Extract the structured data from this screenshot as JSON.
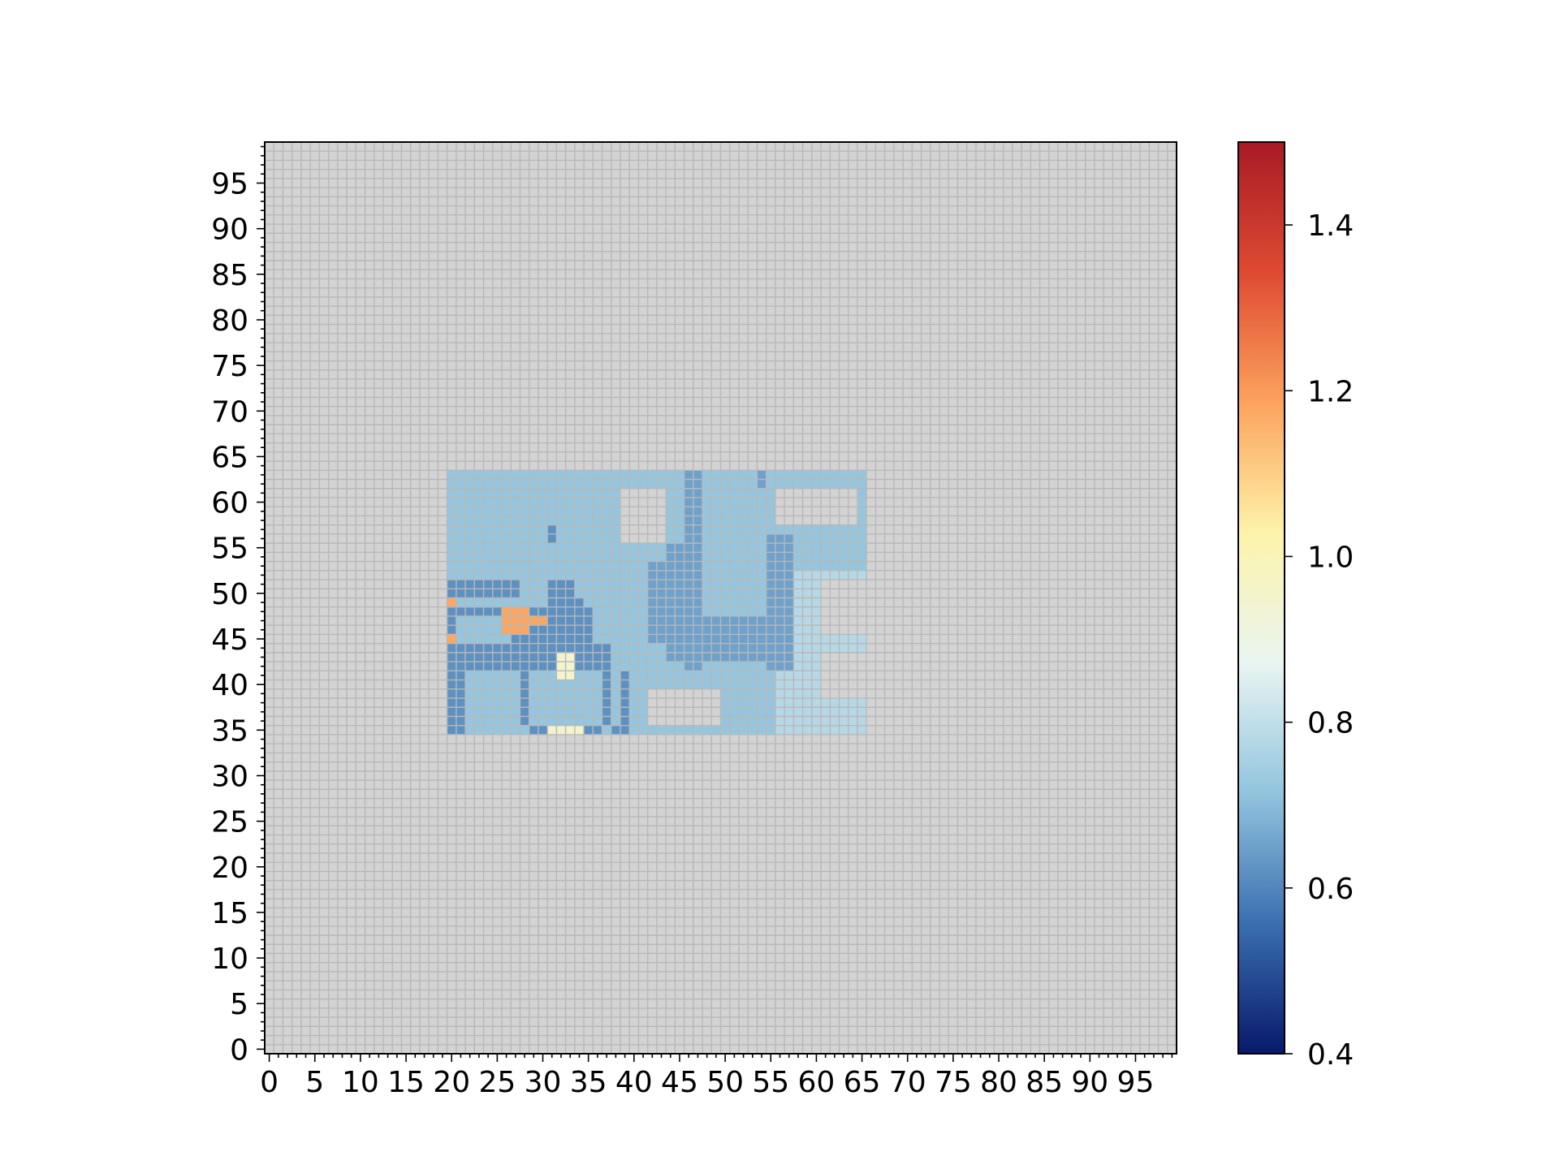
{
  "chart_data": {
    "type": "heatmap",
    "title": "",
    "xlabel": "",
    "ylabel": "",
    "xlim": [
      0,
      100
    ],
    "ylim": [
      0,
      100
    ],
    "x_ticks": [
      "0",
      "5",
      "10",
      "15",
      "20",
      "25",
      "30",
      "35",
      "40",
      "45",
      "50",
      "55",
      "60",
      "65",
      "70",
      "75",
      "80",
      "85",
      "90",
      "95"
    ],
    "y_ticks": [
      "0",
      "5",
      "10",
      "15",
      "20",
      "25",
      "30",
      "35",
      "40",
      "45",
      "50",
      "55",
      "60",
      "65",
      "70",
      "75",
      "80",
      "85",
      "90",
      "95"
    ],
    "x_tick_values": [
      0,
      5,
      10,
      15,
      20,
      25,
      30,
      35,
      40,
      45,
      50,
      55,
      60,
      65,
      70,
      75,
      80,
      85,
      90,
      95
    ],
    "y_tick_values": [
      0,
      5,
      10,
      15,
      20,
      25,
      30,
      35,
      40,
      45,
      50,
      55,
      60,
      65,
      70,
      75,
      80,
      85,
      90,
      95
    ],
    "grid": true,
    "background_value_color": "#d3d3d3",
    "grid_color": "#b8b8b8",
    "colormap": "RdYlBu_r",
    "colorbar": {
      "vmin": 0.4,
      "vmax": 1.5,
      "ticks": [
        "0.4",
        "0.6",
        "0.8",
        "1.0",
        "1.2",
        "1.4"
      ],
      "tick_values": [
        0.4,
        0.6,
        0.8,
        1.0,
        1.2,
        1.4
      ],
      "stops": [
        "#08196b",
        "#3a6fb0",
        "#92c4de",
        "#e9f5f2",
        "#fdf3a9",
        "#fca35d",
        "#de4a32",
        "#a81b25"
      ]
    },
    "cells_value_regions": [
      {
        "x": [
          20,
          65
        ],
        "y": [
          35,
          63
        ],
        "value": 0.72
      },
      {
        "x": [
          56,
          65
        ],
        "y": [
          35,
          52
        ],
        "value": 0.78
      },
      {
        "x": [
          39,
          43
        ],
        "y": [
          56,
          61
        ],
        "value": null
      },
      {
        "x": [
          56,
          64
        ],
        "y": [
          58,
          61
        ],
        "value": null
      },
      {
        "x": [
          42,
          49
        ],
        "y": [
          36,
          39
        ],
        "value": null
      },
      {
        "x": [
          61,
          65
        ],
        "y": [
          46,
          51
        ],
        "value": null
      },
      {
        "x": [
          61,
          65
        ],
        "y": [
          39,
          43
        ],
        "value": null
      },
      {
        "x": [
          46,
          47
        ],
        "y": [
          42,
          63
        ],
        "value": 0.65
      },
      {
        "x": [
          44,
          45
        ],
        "y": [
          43,
          55
        ],
        "value": 0.65
      },
      {
        "x": [
          42,
          43
        ],
        "y": [
          45,
          53
        ],
        "value": 0.65
      },
      {
        "x": [
          46,
          56
        ],
        "y": [
          43,
          47
        ],
        "value": 0.65
      },
      {
        "x": [
          55,
          57
        ],
        "y": [
          42,
          56
        ],
        "value": 0.65
      },
      {
        "x": [
          54,
          54
        ],
        "y": [
          62,
          63
        ],
        "value": 0.65
      },
      {
        "x": [
          20,
          20
        ],
        "y": [
          35,
          51
        ],
        "value": 0.62
      },
      {
        "x": [
          20,
          27
        ],
        "y": [
          50,
          51
        ],
        "value": 0.62
      },
      {
        "x": [
          20,
          29
        ],
        "y": [
          48,
          48
        ],
        "value": 0.62
      },
      {
        "x": [
          20,
          26
        ],
        "y": [
          44,
          44
        ],
        "value": 0.62
      },
      {
        "x": [
          21,
          26
        ],
        "y": [
          42,
          43
        ],
        "value": 0.62
      },
      {
        "x": [
          21,
          21
        ],
        "y": [
          36,
          41
        ],
        "value": 0.62
      },
      {
        "x": [
          20,
          21
        ],
        "y": [
          35,
          35
        ],
        "value": 0.62
      },
      {
        "x": [
          27,
          35
        ],
        "y": [
          42,
          48
        ],
        "value": 0.62
      },
      {
        "x": [
          31,
          33
        ],
        "y": [
          43,
          51
        ],
        "value": 0.62
      },
      {
        "x": [
          33,
          34
        ],
        "y": [
          45,
          49
        ],
        "value": 0.62
      },
      {
        "x": [
          31,
          31
        ],
        "y": [
          56,
          57
        ],
        "value": 0.62
      },
      {
        "x": [
          28,
          28
        ],
        "y": [
          36,
          41
        ],
        "value": 0.62
      },
      {
        "x": [
          29,
          30
        ],
        "y": [
          35,
          35
        ],
        "value": 0.62
      },
      {
        "x": [
          34,
          37
        ],
        "y": [
          42,
          44
        ],
        "value": 0.62
      },
      {
        "x": [
          37,
          37
        ],
        "y": [
          36,
          41
        ],
        "value": 0.62
      },
      {
        "x": [
          35,
          36
        ],
        "y": [
          35,
          35
        ],
        "value": 0.62
      },
      {
        "x": [
          39,
          39
        ],
        "y": [
          36,
          41
        ],
        "value": 0.62
      },
      {
        "x": [
          38,
          39
        ],
        "y": [
          35,
          35
        ],
        "value": 0.62
      },
      {
        "x": [
          26,
          28
        ],
        "y": [
          46,
          48
        ],
        "value": 1.18
      },
      {
        "x": [
          29,
          30
        ],
        "y": [
          47,
          47
        ],
        "value": 1.18
      },
      {
        "x": [
          20,
          20
        ],
        "y": [
          49,
          49
        ],
        "value": 1.18
      },
      {
        "x": [
          20,
          20
        ],
        "y": [
          45,
          45
        ],
        "value": 1.18
      },
      {
        "x": [
          32,
          33
        ],
        "y": [
          41,
          43
        ],
        "value": 0.95
      },
      {
        "x": [
          31,
          34
        ],
        "y": [
          35,
          35
        ],
        "value": 0.95
      }
    ]
  }
}
